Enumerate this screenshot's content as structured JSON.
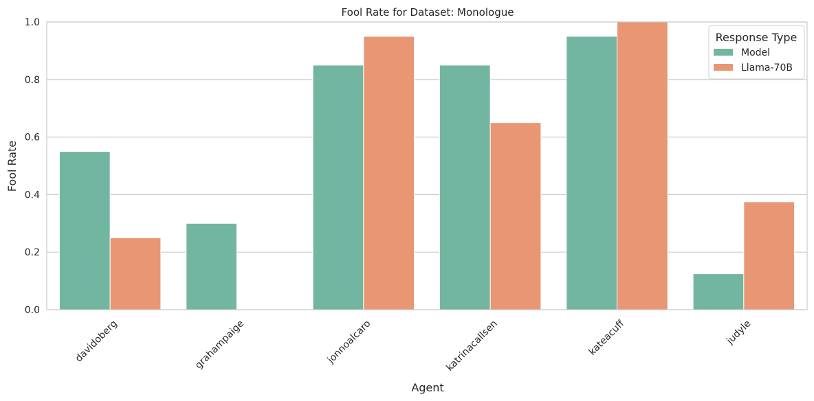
{
  "chart_data": {
    "type": "bar",
    "title": "Fool Rate for Dataset: Monologue",
    "xlabel": "Agent",
    "ylabel": "Fool Rate",
    "categories": [
      "davidoberg",
      "grahampaige",
      "jonnoalcaro",
      "katrinacallsen",
      "kateacuff",
      "judyle"
    ],
    "series": [
      {
        "name": "Model",
        "color": "#72b6a1",
        "values": [
          0.55,
          0.3,
          0.85,
          0.85,
          0.95,
          0.125
        ]
      },
      {
        "name": "Llama-70B",
        "color": "#e99675",
        "values": [
          0.25,
          0.0,
          0.95,
          0.65,
          1.0,
          0.375
        ]
      }
    ],
    "ylim": [
      0,
      1.0
    ],
    "yticks": [
      "0.0",
      "0.2",
      "0.4",
      "0.6",
      "0.8",
      "1.0"
    ],
    "legend": {
      "title": "Response Type",
      "position": "top-right"
    },
    "grid": true
  }
}
